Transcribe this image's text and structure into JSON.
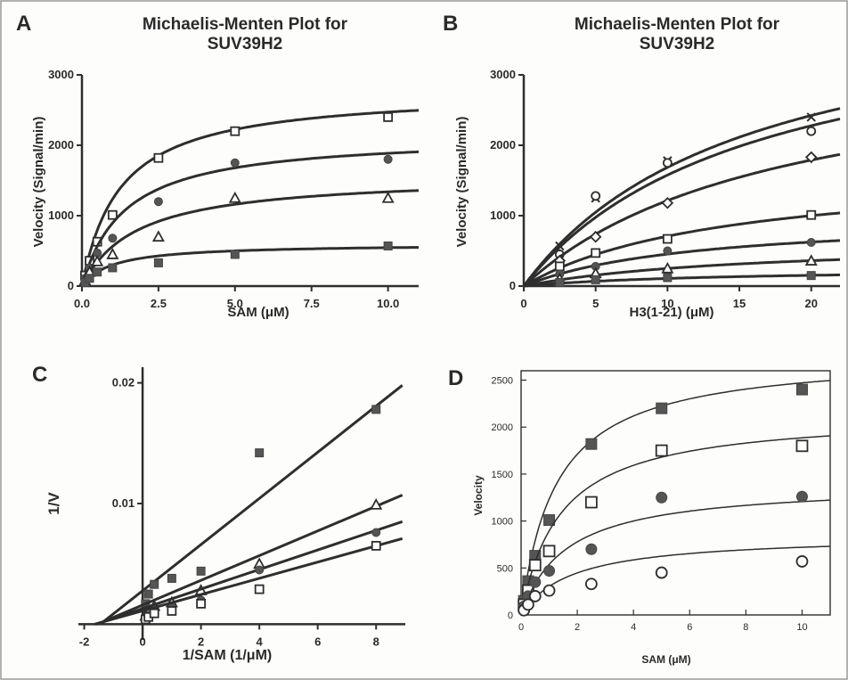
{
  "chart_data": [
    {
      "panel": "A",
      "type": "scatter",
      "title": "Michaelis-Menten Plot for SUV39H2",
      "xlabel": "SAM (μM)",
      "ylabel": "Velocity (Signal/min)",
      "xlim": [
        0,
        11
      ],
      "ylim": [
        0,
        3000
      ],
      "xticks": [
        "0.0",
        "2.5",
        "5.0",
        "7.5",
        "10.0"
      ],
      "yticks": [
        "0",
        "1000",
        "2000",
        "3000"
      ],
      "series": [
        {
          "marker": "open-square",
          "x": [
            0.1,
            0.25,
            0.5,
            1,
            2.5,
            5,
            10
          ],
          "y": [
            150,
            360,
            630,
            1010,
            1820,
            2200,
            2400
          ],
          "fit": {
            "vmax": 2780,
            "km": 1.25
          }
        },
        {
          "marker": "filled-circle",
          "x": [
            0.1,
            0.25,
            0.5,
            1,
            2.5,
            5,
            10
          ],
          "y": [
            110,
            260,
            470,
            680,
            1200,
            1750,
            1800
          ],
          "fit": {
            "vmax": 2150,
            "km": 1.4
          }
        },
        {
          "marker": "open-triangle",
          "x": [
            0.1,
            0.25,
            0.5,
            1,
            2.5,
            5,
            10
          ],
          "y": [
            80,
            200,
            350,
            450,
            700,
            1250,
            1250
          ],
          "fit": {
            "vmax": 1580,
            "km": 1.8
          }
        },
        {
          "marker": "filled-square",
          "x": [
            0.1,
            0.25,
            0.5,
            1,
            2.5,
            5,
            10
          ],
          "y": [
            50,
            110,
            200,
            260,
            330,
            450,
            570
          ],
          "fit": {
            "vmax": 600,
            "km": 1.0
          }
        }
      ]
    },
    {
      "panel": "B",
      "type": "scatter",
      "title": "Michaelis-Menten Plot for SUV39H2",
      "xlabel": "H3(1-21) (μM)",
      "ylabel": "Velocity (Signal/min)",
      "xlim": [
        0,
        22
      ],
      "ylim": [
        0,
        3000
      ],
      "xticks": [
        "0",
        "5",
        "10",
        "15",
        "20"
      ],
      "yticks": [
        "0",
        "1000",
        "2000",
        "3000"
      ],
      "series": [
        {
          "marker": "cross",
          "x": [
            2.5,
            5,
            10,
            20
          ],
          "y": [
            570,
            1250,
            1780,
            2400
          ],
          "fit": {
            "vmax": 4300,
            "km": 15.5
          }
        },
        {
          "marker": "open-circle",
          "x": [
            2.5,
            5,
            10,
            20
          ],
          "y": [
            450,
            1280,
            1750,
            2200
          ],
          "fit": {
            "vmax": 4100,
            "km": 16.0
          }
        },
        {
          "marker": "open-diamond",
          "x": [
            2.5,
            5,
            10,
            20
          ],
          "y": [
            360,
            700,
            1180,
            1830
          ],
          "fit": {
            "vmax": 3400,
            "km": 18.0
          }
        },
        {
          "marker": "open-square",
          "x": [
            2.5,
            5,
            10,
            20
          ],
          "y": [
            280,
            470,
            670,
            1010
          ],
          "fit": {
            "vmax": 1700,
            "km": 14.0
          }
        },
        {
          "marker": "filled-circle",
          "x": [
            2.5,
            5,
            10,
            20
          ],
          "y": [
            170,
            280,
            500,
            620
          ],
          "fit": {
            "vmax": 1000,
            "km": 12.0
          }
        },
        {
          "marker": "open-triangle",
          "x": [
            2.5,
            5,
            10,
            20
          ],
          "y": [
            100,
            180,
            250,
            360
          ],
          "fit": {
            "vmax": 650,
            "km": 16.0
          }
        },
        {
          "marker": "filled-square",
          "x": [
            2.5,
            5,
            10,
            20
          ],
          "y": [
            50,
            90,
            120,
            150
          ],
          "fit": {
            "vmax": 260,
            "km": 14.0
          }
        }
      ]
    },
    {
      "panel": "C",
      "type": "scatter",
      "xlabel": "1/SAM (1/μM)",
      "ylabel": "1/V",
      "xlim": [
        -2.2,
        9
      ],
      "ylim": [
        -0.0013,
        0.0213
      ],
      "xticks": [
        "-2",
        "0",
        "2",
        "4",
        "6",
        "8"
      ],
      "yticks": [
        "0.01",
        "0.02"
      ],
      "series": [
        {
          "marker": "filled-square",
          "x": [
            0.1,
            0.2,
            0.4,
            1,
            2,
            4,
            8
          ],
          "y": [
            0.0017,
            0.0025,
            0.0033,
            0.0038,
            0.0044,
            0.0142,
            0.0178
          ],
          "fit": {
            "x1": -1.45,
            "y1": 0,
            "x2": 8.9,
            "y2": 0.0198
          }
        },
        {
          "marker": "open-triangle",
          "x": [
            0.1,
            0.2,
            0.4,
            1,
            2,
            4,
            8
          ],
          "y": [
            0.0007,
            0.001,
            0.0015,
            0.0018,
            0.0028,
            0.005,
            0.0099
          ],
          "fit": {
            "x1": -1.55,
            "y1": 0,
            "x2": 8.9,
            "y2": 0.0107
          }
        },
        {
          "marker": "filled-circle",
          "x": [
            0.1,
            0.2,
            0.4,
            1,
            2,
            4,
            8
          ],
          "y": [
            0.0005,
            0.0007,
            0.0011,
            0.0014,
            0.002,
            0.0045,
            0.0076
          ],
          "fit": {
            "x1": -1.6,
            "y1": 0,
            "x2": 8.9,
            "y2": 0.0085
          }
        },
        {
          "marker": "open-square",
          "x": [
            0.1,
            0.2,
            0.4,
            1,
            2,
            4,
            8
          ],
          "y": [
            0.0004,
            0.0006,
            0.0009,
            0.0011,
            0.0017,
            0.0029,
            0.0065
          ],
          "fit": {
            "x1": -1.65,
            "y1": 0,
            "x2": 8.9,
            "y2": 0.0071
          }
        }
      ]
    },
    {
      "panel": "D",
      "type": "scatter",
      "xlabel": "SAM (μM)",
      "ylabel": "Velocity",
      "xlim": [
        0,
        11
      ],
      "ylim": [
        0,
        2600
      ],
      "xticks": [
        "0",
        "2",
        "4",
        "6",
        "8",
        "10"
      ],
      "yticks": [
        "0",
        "500",
        "1000",
        "1500",
        "2000",
        "2500"
      ],
      "series": [
        {
          "marker": "filled-square",
          "x": [
            0.1,
            0.25,
            0.5,
            1,
            2.5,
            5,
            10
          ],
          "y": [
            150,
            360,
            630,
            1010,
            1820,
            2200,
            2400
          ],
          "fit": {
            "vmax": 2780,
            "km": 1.25
          }
        },
        {
          "marker": "open-square",
          "x": [
            0.1,
            0.25,
            0.5,
            1,
            2.5,
            5,
            10
          ],
          "y": [
            110,
            260,
            530,
            680,
            1200,
            1750,
            1800
          ],
          "fit": {
            "vmax": 2150,
            "km": 1.4
          }
        },
        {
          "marker": "filled-circle",
          "x": [
            0.1,
            0.25,
            0.5,
            1,
            2.5,
            5,
            10
          ],
          "y": [
            90,
            200,
            350,
            470,
            700,
            1250,
            1260
          ],
          "fit": {
            "vmax": 1400,
            "km": 1.6
          }
        },
        {
          "marker": "open-circle",
          "x": [
            0.1,
            0.25,
            0.5,
            1,
            2.5,
            5,
            10
          ],
          "y": [
            50,
            110,
            200,
            260,
            330,
            450,
            570
          ],
          "fit": {
            "vmax": 850,
            "km": 1.8
          }
        }
      ]
    }
  ]
}
